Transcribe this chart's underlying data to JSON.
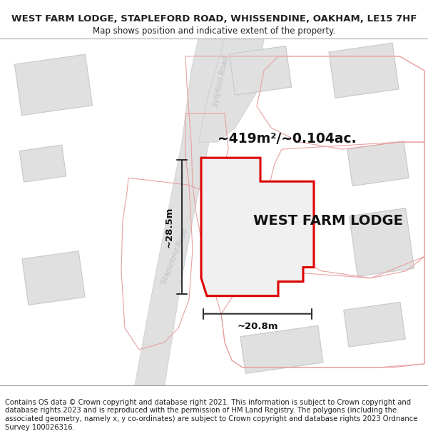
{
  "title": "WEST FARM LODGE, STAPLEFORD ROAD, WHISSENDINE, OAKHAM, LE15 7HF",
  "subtitle": "Map shows position and indicative extent of the property.",
  "footer": "Contains OS data © Crown copyright and database right 2021. This information is subject to Crown copyright and database rights 2023 and is reproduced with the permission of HM Land Registry. The polygons (including the associated geometry, namely x, y co-ordinates) are subject to Crown copyright and database rights 2023 Ordnance Survey 100026316.",
  "area_label": "~419m²/~0.104ac.",
  "width_label": "~20.8m",
  "height_label": "~28.5m",
  "property_label": "WEST FARM LODGE",
  "bg_color": "#f8f8f8",
  "road_color": "#e0e0e0",
  "road_edge_color": "#c8c8c8",
  "building_fill": "#e0e0e0",
  "building_edge": "#c8c8c8",
  "red_color": "#dd0000",
  "pink_color": "#e8a0a0",
  "dim_color": "#333333",
  "road_label_color": "#c0c0c0",
  "title_fontsize": 9.5,
  "subtitle_fontsize": 8.5,
  "footer_fontsize": 7.2,
  "title_bold": true
}
